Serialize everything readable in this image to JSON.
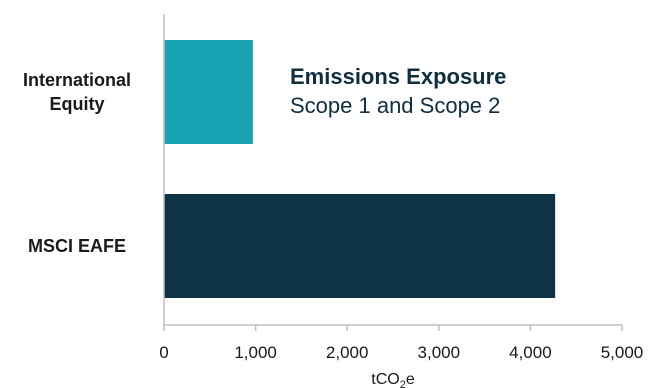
{
  "chart_data": {
    "type": "bar",
    "orientation": "horizontal",
    "title": "Emissions Exposure",
    "subtitle": "Scope 1 and Scope 2",
    "categories": [
      [
        "International",
        "Equity"
      ],
      [
        "MSCI EAFE"
      ]
    ],
    "values": [
      970,
      4270
    ],
    "colors": [
      "#1aa3b3",
      "#0d3345"
    ],
    "xlabel_parts": {
      "pre": "tCO",
      "sub": "2",
      "post": "e"
    },
    "xlim": [
      0,
      5000
    ],
    "xticks": [
      0,
      1000,
      2000,
      3000,
      4000,
      5000
    ],
    "xtick_labels": [
      "0",
      "1,000",
      "2,000",
      "3,000",
      "4,000",
      "5,000"
    ],
    "grid": false,
    "legend": "none"
  }
}
